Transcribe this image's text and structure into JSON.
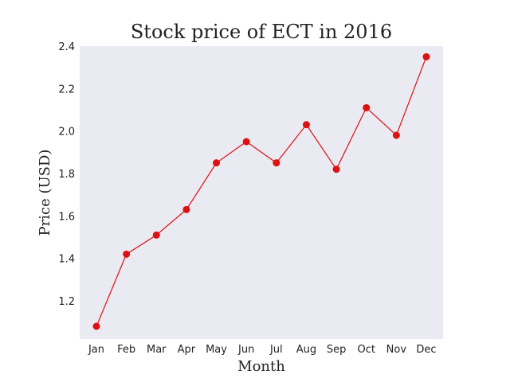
{
  "chart_data": {
    "type": "line",
    "title": "Stock price of ECT in 2016",
    "xlabel": "Month",
    "ylabel": "Price (USD)",
    "categories": [
      "Jan",
      "Feb",
      "Mar",
      "Apr",
      "May",
      "Jun",
      "Jul",
      "Aug",
      "Sep",
      "Oct",
      "Nov",
      "Dec"
    ],
    "series": [
      {
        "values": [
          1.08,
          1.42,
          1.51,
          1.63,
          1.85,
          1.95,
          1.85,
          2.03,
          1.82,
          2.11,
          1.98,
          2.35
        ]
      }
    ],
    "ylim": [
      1.02,
      2.4
    ],
    "yticks": [
      1.2,
      1.4,
      1.6,
      1.8,
      2.0,
      2.2,
      2.4
    ],
    "ytick_labels": [
      "1.2",
      "1.4",
      "1.6",
      "1.8",
      "2.0",
      "2.2",
      "2.4"
    ],
    "grid": false,
    "legend": "none",
    "colors": {
      "plot_background": "#eaeaf2",
      "line": "#dd1111",
      "marker": "#dd1111"
    }
  }
}
